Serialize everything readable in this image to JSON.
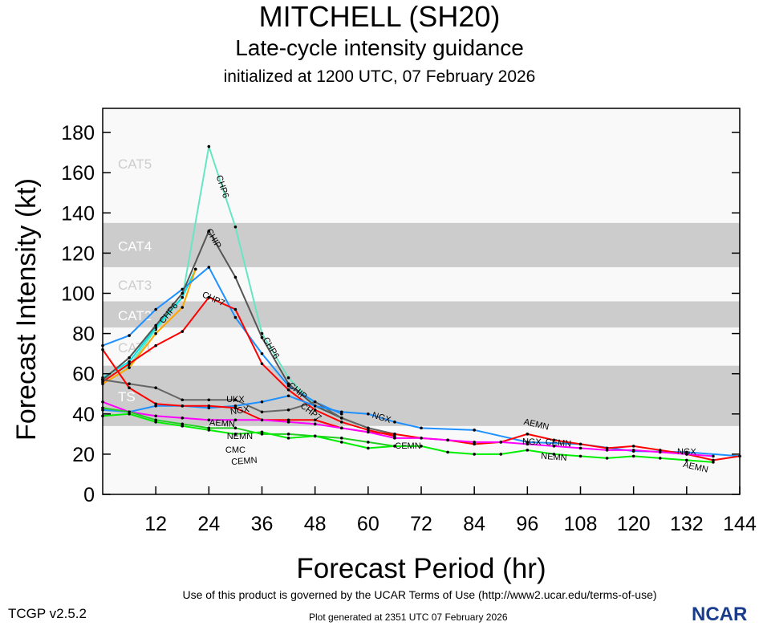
{
  "header": {
    "title": "MITCHELL (SH20)",
    "subtitle": "Late-cycle intensity guidance",
    "init": "initialized at 1200 UTC, 07 February 2026"
  },
  "footer": {
    "terms": "Use of this product is governed by the UCAR Terms of Use (http://www2.ucar.edu/terms-of-use)",
    "version": "TCGP v2.5.2",
    "generated": "Plot generated at 2351 UTC   07 February 2026",
    "logo": "NCAR"
  },
  "colors": {
    "band_dark": "#cccccc",
    "band_light": "#f9f9f9",
    "band_text_dark": "#ffffff",
    "band_text_light": "#cccccc"
  },
  "chart_data": {
    "type": "line",
    "xlabel": "Forecast Period (hr)",
    "ylabel": "Forecast Intensity (kt)",
    "xlim": [
      0,
      144
    ],
    "ylim": [
      0,
      192
    ],
    "xticks": [
      12,
      24,
      36,
      48,
      60,
      72,
      84,
      96,
      108,
      120,
      132,
      144
    ],
    "yticks": [
      0,
      20,
      40,
      60,
      80,
      100,
      120,
      140,
      160,
      180
    ],
    "bands": [
      {
        "label": "TS",
        "from": 34,
        "to": 64,
        "shade": "dark"
      },
      {
        "label": "CAT1",
        "from": 64,
        "to": 83,
        "shade": "light"
      },
      {
        "label": "CAT2",
        "from": 83,
        "to": 96,
        "shade": "dark"
      },
      {
        "label": "CAT3",
        "from": 96,
        "to": 113,
        "shade": "light"
      },
      {
        "label": "CAT4",
        "from": 113,
        "to": 135,
        "shade": "dark"
      },
      {
        "label": "CAT5",
        "from": 135,
        "to": 192,
        "shade": "light"
      }
    ],
    "series": [
      {
        "name": "CHP6",
        "color": "#66e6c2",
        "x": [
          0,
          6,
          12,
          18,
          24,
          30,
          36,
          42,
          48,
          54,
          60,
          66
        ],
        "y": [
          57,
          64,
          82,
          98,
          173,
          133,
          80,
          58,
          44,
          38,
          33,
          30
        ],
        "label_at": [
          15,
          27,
          38
        ]
      },
      {
        "name": "",
        "color": "#00e5e5",
        "x": [
          0,
          6,
          12,
          18,
          21
        ],
        "y": [
          58,
          66,
          83,
          98,
          112
        ],
        "label_at": []
      },
      {
        "name": "",
        "color": "#ffa500",
        "x": [
          0,
          6,
          12,
          18,
          21
        ],
        "y": [
          55,
          63,
          80,
          93,
          112
        ],
        "label_at": []
      },
      {
        "name": "",
        "color": "#1e90ff",
        "x": [
          0,
          6,
          12,
          18,
          24,
          30,
          36,
          42,
          48,
          54
        ],
        "y": [
          74,
          79,
          92,
          102,
          113,
          88,
          70,
          54,
          46,
          40
        ],
        "label_at": []
      },
      {
        "name": "CHIP",
        "color": "#555555",
        "x": [
          0,
          6,
          12,
          18,
          24,
          30,
          36,
          42,
          48,
          54,
          60,
          66
        ],
        "y": [
          57,
          68,
          84,
          100,
          131,
          108,
          78,
          55,
          44,
          38,
          33,
          30
        ],
        "label_at": [
          25,
          44
        ]
      },
      {
        "name": "CHP7",
        "color": "#ff0000",
        "x": [
          0,
          6,
          12,
          18,
          24,
          30,
          36,
          42,
          48,
          54,
          60,
          66
        ],
        "y": [
          56,
          65,
          74,
          81,
          98,
          92,
          65,
          52,
          42,
          36,
          32,
          29
        ],
        "label_at": [
          25,
          47
        ]
      },
      {
        "name": "UKX",
        "color": "#666666",
        "x": [
          0,
          6,
          12,
          18,
          24,
          30,
          36,
          42,
          48,
          54,
          60,
          66
        ],
        "y": [
          57,
          55,
          53,
          47,
          47,
          47,
          41,
          42,
          46,
          38,
          33,
          30
        ],
        "label_at": [
          30
        ]
      },
      {
        "name": "NGX",
        "color": "#1e90ff",
        "x": [
          0,
          6,
          12,
          18,
          24,
          30,
          36,
          42,
          48,
          54,
          60,
          66,
          72,
          84,
          96,
          108,
          120,
          132,
          144
        ],
        "y": [
          42,
          41,
          44,
          44,
          43,
          44,
          46,
          49,
          44,
          41,
          40,
          36,
          33,
          32,
          26,
          25,
          21.5,
          21,
          19
        ],
        "label_at": [
          31,
          63,
          97,
          132
        ]
      },
      {
        "name": "AEMN",
        "color": "#ff0000",
        "x": [
          0,
          6,
          12,
          18,
          24,
          30,
          36,
          42,
          48,
          54,
          60,
          66,
          72,
          78,
          84,
          90,
          96,
          102,
          108,
          114,
          120,
          126,
          132,
          138,
          144
        ],
        "y": [
          72,
          53,
          45,
          44,
          44,
          43,
          37,
          37,
          37,
          33,
          31,
          30,
          28,
          27,
          25,
          26,
          30,
          27,
          25,
          23,
          24,
          22,
          20,
          17,
          19
        ],
        "label_at": [
          27,
          98,
          134
        ]
      },
      {
        "name": "NEMN",
        "color": "#ff00ff",
        "x": [
          0,
          6,
          12,
          18,
          24,
          30,
          36,
          42,
          48,
          54,
          60,
          66,
          72,
          78,
          84,
          90,
          96,
          102,
          108,
          114,
          120,
          126,
          132,
          138
        ],
        "y": [
          46,
          41,
          39,
          38,
          37,
          37,
          37,
          36,
          35,
          33,
          31,
          28,
          28,
          27,
          26,
          26,
          25,
          24,
          23,
          22,
          22,
          21,
          20,
          19
        ],
        "label_at": [
          31,
          102
        ]
      },
      {
        "name": "CMC",
        "color": "#22cc22",
        "x": [
          0,
          6,
          12,
          18,
          24,
          30,
          36,
          42,
          48,
          54,
          60,
          66
        ],
        "y": [
          43,
          41,
          37,
          35,
          33,
          33,
          30,
          30,
          29,
          28,
          26,
          24
        ],
        "label_at": [
          30
        ]
      },
      {
        "name": "CEMN",
        "color": "#00ee00",
        "x": [
          0,
          6,
          12,
          18,
          24,
          30,
          36,
          42,
          48,
          54,
          60,
          66,
          72,
          78,
          84,
          90,
          96,
          102,
          108,
          114,
          120,
          126,
          132,
          138
        ],
        "y": [
          39,
          40,
          36,
          34,
          32,
          30,
          31,
          28,
          29,
          26,
          23,
          24,
          24,
          21,
          20,
          20,
          22,
          20,
          19,
          18,
          19,
          18,
          17,
          16
        ],
        "label_at": [
          32,
          69,
          103
        ]
      }
    ]
  }
}
